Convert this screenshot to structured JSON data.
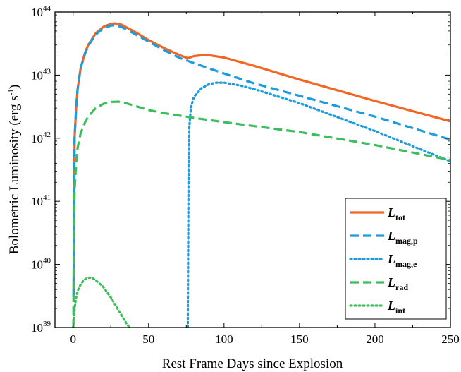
{
  "chart_data": {
    "type": "line",
    "title": "",
    "xlabel": "Rest Frame Days since Explosion",
    "ylabel": {
      "main": "Bolometric Luminosity (erg s",
      "sup": "-1",
      "close": ")"
    },
    "xlim": [
      -12,
      250
    ],
    "ylim": [
      1e+39,
      1e+44
    ],
    "y_scale": "log",
    "x_ticks": [
      0,
      50,
      100,
      150,
      200,
      250
    ],
    "x_tick_labels": [
      "0",
      "50",
      "100",
      "150",
      "200",
      "250"
    ],
    "y_ticks": [
      1e+39,
      1e+40,
      1e+41,
      1e+42,
      1e+43,
      1e+44
    ],
    "y_tick_labels": [
      {
        "base": "10",
        "exp": "39"
      },
      {
        "base": "10",
        "exp": "40"
      },
      {
        "base": "10",
        "exp": "41"
      },
      {
        "base": "10",
        "exp": "42"
      },
      {
        "base": "10",
        "exp": "43"
      },
      {
        "base": "10",
        "exp": "44"
      }
    ],
    "legend_position": "bottom-right",
    "grid": false,
    "series": [
      {
        "name": {
          "main": "L",
          "sub": "tot"
        },
        "color": "#F26522",
        "style": "solid",
        "x": [
          0.3,
          1,
          2,
          3,
          5,
          8,
          10,
          15,
          20,
          25,
          28,
          32,
          40,
          50,
          60,
          70,
          76,
          80,
          88,
          100,
          120,
          150,
          200,
          250
        ],
        "y": [
          3e+39,
          1e+42,
          3e+42,
          6e+42,
          1.3e+43,
          2.3e+43,
          3e+43,
          4.6e+43,
          5.8e+43,
          6.5e+43,
          6.6e+43,
          6.3e+43,
          5e+43,
          3.6e+43,
          2.7e+43,
          2.1e+43,
          1.85e+43,
          2e+43,
          2.1e+43,
          1.9e+43,
          1.4e+43,
          8.5e+42,
          3.9e+42,
          1.85e+42
        ]
      },
      {
        "name": {
          "main": "L",
          "sub": "mag,p"
        },
        "color": "#1C9BDD",
        "style": "dash",
        "x": [
          0.3,
          1,
          2,
          3,
          5,
          8,
          10,
          15,
          20,
          25,
          28,
          32,
          40,
          50,
          60,
          70,
          80,
          90,
          100,
          120,
          150,
          200,
          250
        ],
        "y": [
          3e+39,
          1e+42,
          3e+42,
          6e+42,
          1.3e+43,
          2.2e+43,
          2.9e+43,
          4.4e+43,
          5.5e+43,
          6.1e+43,
          6.2e+43,
          5.8e+43,
          4.6e+43,
          3.4e+43,
          2.5e+43,
          1.9e+43,
          1.55e+43,
          1.28e+43,
          1.06e+43,
          7.4e+42,
          4.7e+42,
          2.2e+42,
          9.5e+41
        ]
      },
      {
        "name": {
          "main": "L",
          "sub": "mag,e"
        },
        "color": "#1C9BDD",
        "style": "dot",
        "x": [
          76,
          76.5,
          77,
          78,
          80,
          85,
          90,
          95,
          100,
          110,
          120,
          150,
          200,
          250
        ],
        "y": [
          1e+39,
          3e+41,
          1.5e+42,
          3e+42,
          4.5e+42,
          6.2e+42,
          7.2e+42,
          7.6e+42,
          7.6e+42,
          6.9e+42,
          6e+42,
          3.6e+42,
          1.3e+42,
          4.3e+41
        ]
      },
      {
        "name": {
          "main": "L",
          "sub": "rad"
        },
        "color": "#3DBE5C",
        "style": "dash",
        "x": [
          0.2,
          0.5,
          1,
          2,
          3,
          5,
          8,
          10,
          15,
          20,
          25,
          30,
          35,
          40,
          50,
          60,
          80,
          100,
          150,
          200,
          250
        ],
        "y": [
          1e+39,
          3e+40,
          1.5e+41,
          4e+41,
          7e+41,
          1.2e+42,
          1.8e+42,
          2.2e+42,
          3e+42,
          3.5e+42,
          3.75e+42,
          3.8e+42,
          3.6e+42,
          3.3e+42,
          2.8e+42,
          2.5e+42,
          2.1e+42,
          1.8e+42,
          1.25e+42,
          7.8e+41,
          4.5e+41
        ]
      },
      {
        "name": {
          "main": "L",
          "sub": "int"
        },
        "color": "#3DBE5C",
        "style": "dot",
        "x": [
          0,
          1,
          2,
          3,
          5,
          7,
          9,
          11,
          13,
          15,
          20,
          25,
          30,
          35,
          38
        ],
        "y": [
          1e+39,
          2e+39,
          3e+39,
          3.8e+39,
          4.8e+39,
          5.6e+39,
          6e+39,
          6.2e+39,
          6e+39,
          5.6e+39,
          4.4e+39,
          3e+39,
          1.9e+39,
          1.2e+39,
          9.5e+38
        ]
      }
    ]
  }
}
